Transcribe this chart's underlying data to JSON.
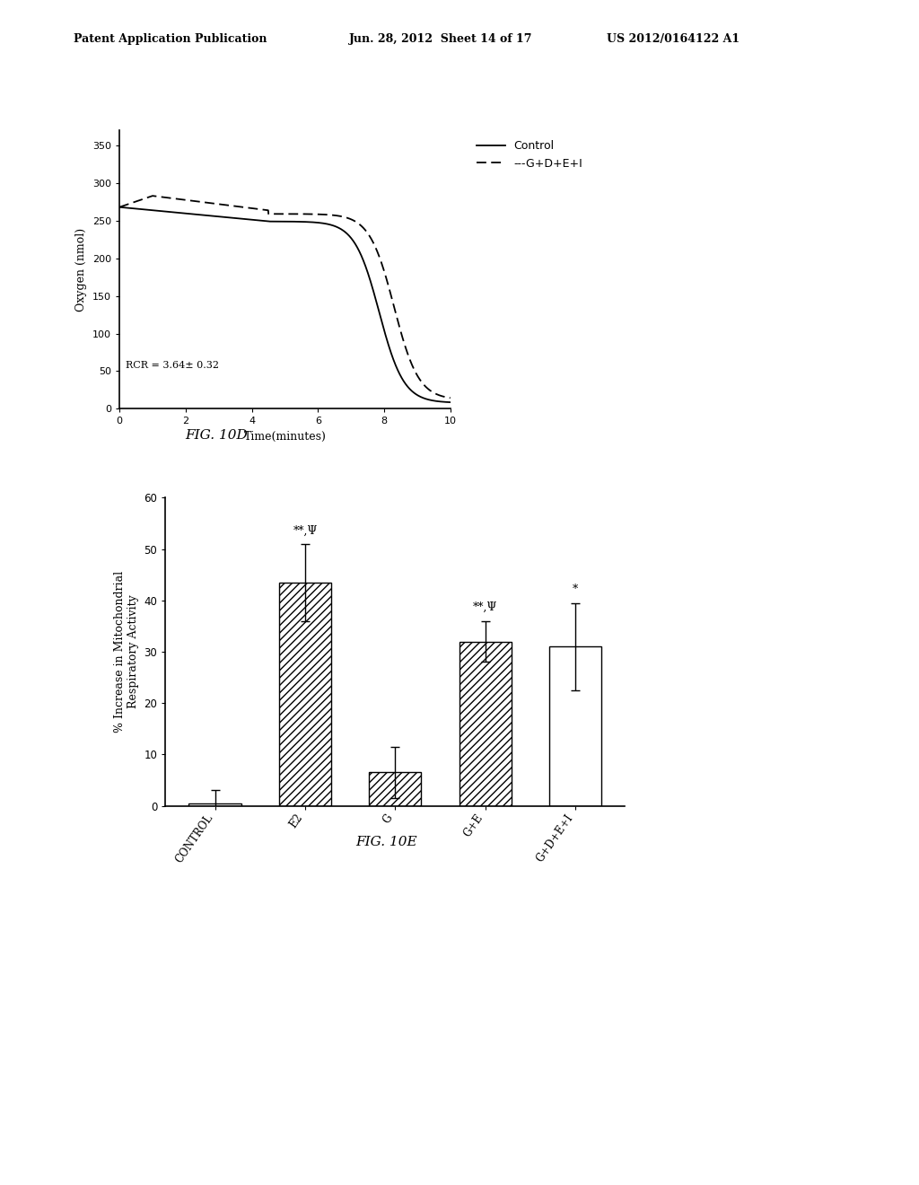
{
  "header_left": "Patent Application Publication",
  "header_mid": "Jun. 28, 2012  Sheet 14 of 17",
  "header_right": "US 2012/0164122 A1",
  "fig10d": {
    "xlabel": "Time(minutes)",
    "ylabel": "Oxygen (nmol)",
    "xlim": [
      0,
      10
    ],
    "ylim": [
      0,
      370
    ],
    "yticks": [
      0,
      50,
      100,
      150,
      200,
      250,
      300,
      350
    ],
    "xticks": [
      0,
      2,
      4,
      6,
      8,
      10
    ],
    "rcr_label": "RCR = 3.64± 0.32",
    "legend_control": "Control",
    "legend_gdei": "---G+D+E+I",
    "caption": "FIG. 10D"
  },
  "fig10e": {
    "categories": [
      "CONTROL",
      "E2",
      "G",
      "G+E",
      "G+D+E+I"
    ],
    "values": [
      0.5,
      43.5,
      6.5,
      32.0,
      31.0
    ],
    "errors": [
      2.5,
      7.5,
      5.0,
      4.0,
      8.5
    ],
    "ylabel": "% Increase in Mitochondrial\nRespiratory Activity",
    "ylim": [
      0,
      60
    ],
    "yticks": [
      0,
      10,
      20,
      30,
      40,
      50,
      60
    ],
    "caption": "FIG. 10E",
    "annotations": [
      "",
      "**,Ψ",
      "",
      "**,Ψ",
      "*"
    ],
    "hatch_patterns": [
      "",
      "////",
      "////",
      "////",
      "===="
    ]
  },
  "bg_color": "#ffffff",
  "text_color": "#000000"
}
